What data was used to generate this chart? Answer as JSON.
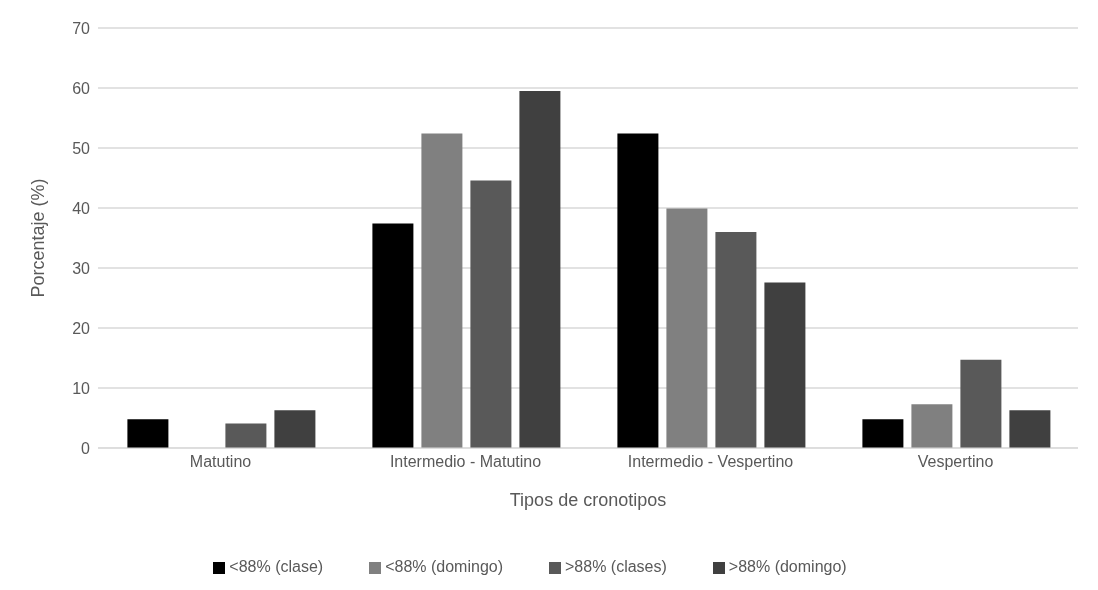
{
  "chart_data": {
    "type": "bar",
    "xlabel": "Tipos de cronotipos",
    "ylabel": "Porcentaje (%)",
    "categories": [
      "Matutino",
      "Intermedio - Matutino",
      "Intermedio - Vespertino",
      "Vespertino"
    ],
    "series": [
      {
        "name": "<88% (clase)",
        "color": "#000000",
        "values": [
          4.8,
          37.4,
          52.4,
          4.8
        ]
      },
      {
        "name": "<88% (domingo)",
        "color": "#808080",
        "values": [
          0,
          52.4,
          39.9,
          7.3
        ]
      },
      {
        "name": ">88% (clases)",
        "color": "#595959",
        "values": [
          4.1,
          44.6,
          36.0,
          14.7
        ]
      },
      {
        "name": ">88% (domingo)",
        "color": "#404040",
        "values": [
          6.3,
          59.5,
          27.6,
          6.3
        ]
      }
    ],
    "ylim": [
      0,
      70
    ],
    "yticks": [
      0,
      10,
      20,
      30,
      40,
      50,
      60,
      70
    ],
    "grid": "y",
    "legend": "bottom"
  }
}
